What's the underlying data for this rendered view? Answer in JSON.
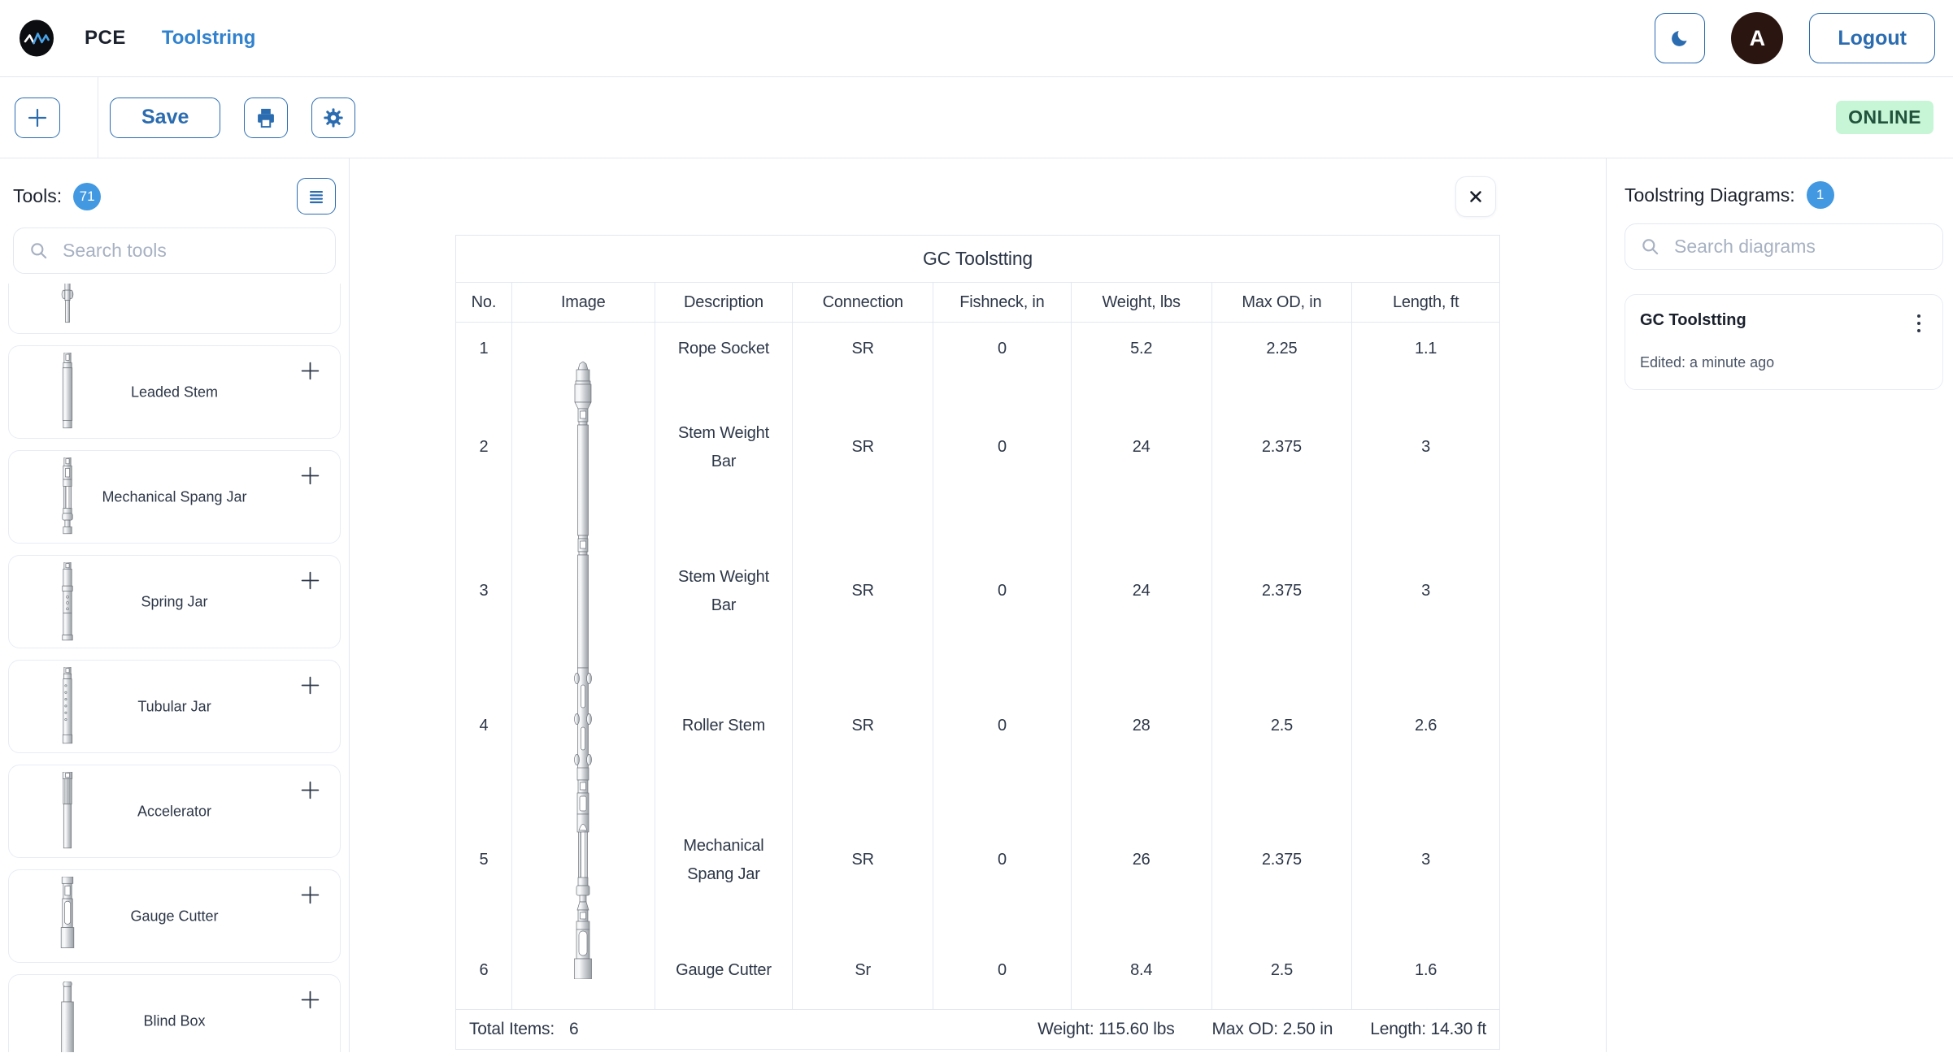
{
  "navbar": {
    "brand": "PCE",
    "nav_link": "Toolstring",
    "avatar_initial": "A",
    "logout_label": "Logout"
  },
  "toolbar": {
    "save_label": "Save",
    "online_label": "ONLINE"
  },
  "tools_panel": {
    "title": "Tools:",
    "count": "71",
    "search_placeholder": "Search tools",
    "items": [
      {
        "name": "",
        "shape": "rod"
      },
      {
        "name": "Leaded Stem",
        "shape": "leaded-stem"
      },
      {
        "name": "Mechanical Spang Jar",
        "shape": "spang-jar"
      },
      {
        "name": "Spring Jar",
        "shape": "spring-jar"
      },
      {
        "name": "Tubular Jar",
        "shape": "tubular-jar"
      },
      {
        "name": "Accelerator",
        "shape": "accelerator"
      },
      {
        "name": "Gauge Cutter",
        "shape": "gauge-cutter"
      },
      {
        "name": "Blind Box",
        "shape": "blind-box"
      }
    ]
  },
  "diagram": {
    "title": "GC Toolstting",
    "columns": [
      "No.",
      "Image",
      "Description",
      "Connection",
      "Fishneck, in",
      "Weight, lbs",
      "Max OD, in",
      "Length, ft"
    ],
    "rows": [
      {
        "no": "1",
        "description": "Rope Socket",
        "connection": "SR",
        "fishneck": "0",
        "weight": "5.2",
        "max_od": "2.25",
        "length": "1.1"
      },
      {
        "no": "2",
        "description": "Stem Weight Bar",
        "connection": "SR",
        "fishneck": "0",
        "weight": "24",
        "max_od": "2.375",
        "length": "3"
      },
      {
        "no": "3",
        "description": "Stem Weight Bar",
        "connection": "SR",
        "fishneck": "0",
        "weight": "24",
        "max_od": "2.375",
        "length": "3"
      },
      {
        "no": "4",
        "description": "Roller Stem",
        "connection": "SR",
        "fishneck": "0",
        "weight": "28",
        "max_od": "2.5",
        "length": "2.6"
      },
      {
        "no": "5",
        "description": "Mechanical Spang Jar",
        "connection": "SR",
        "fishneck": "0",
        "weight": "26",
        "max_od": "2.375",
        "length": "3"
      },
      {
        "no": "6",
        "description": "Gauge Cutter",
        "connection": "Sr",
        "fishneck": "0",
        "weight": "8.4",
        "max_od": "2.5",
        "length": "1.6"
      }
    ],
    "footer": {
      "total_items_label": "Total Items:",
      "total_items_value": "6",
      "weight": "Weight: 115.60 lbs",
      "max_od": "Max OD: 2.50 in",
      "length": "Length: 14.30 ft"
    }
  },
  "diagrams_panel": {
    "title": "Toolstring Diagrams:",
    "count": "1",
    "search_placeholder": "Search diagrams",
    "cards": [
      {
        "title": "GC Toolstting",
        "edited": "Edited: a minute ago"
      }
    ]
  },
  "colors": {
    "accent": "#2b6cb0",
    "link": "#3182ce",
    "badge": "#4299e1",
    "online_bg": "#c6f6d5",
    "online_text": "#22543d",
    "border": "#e2e8f0"
  }
}
